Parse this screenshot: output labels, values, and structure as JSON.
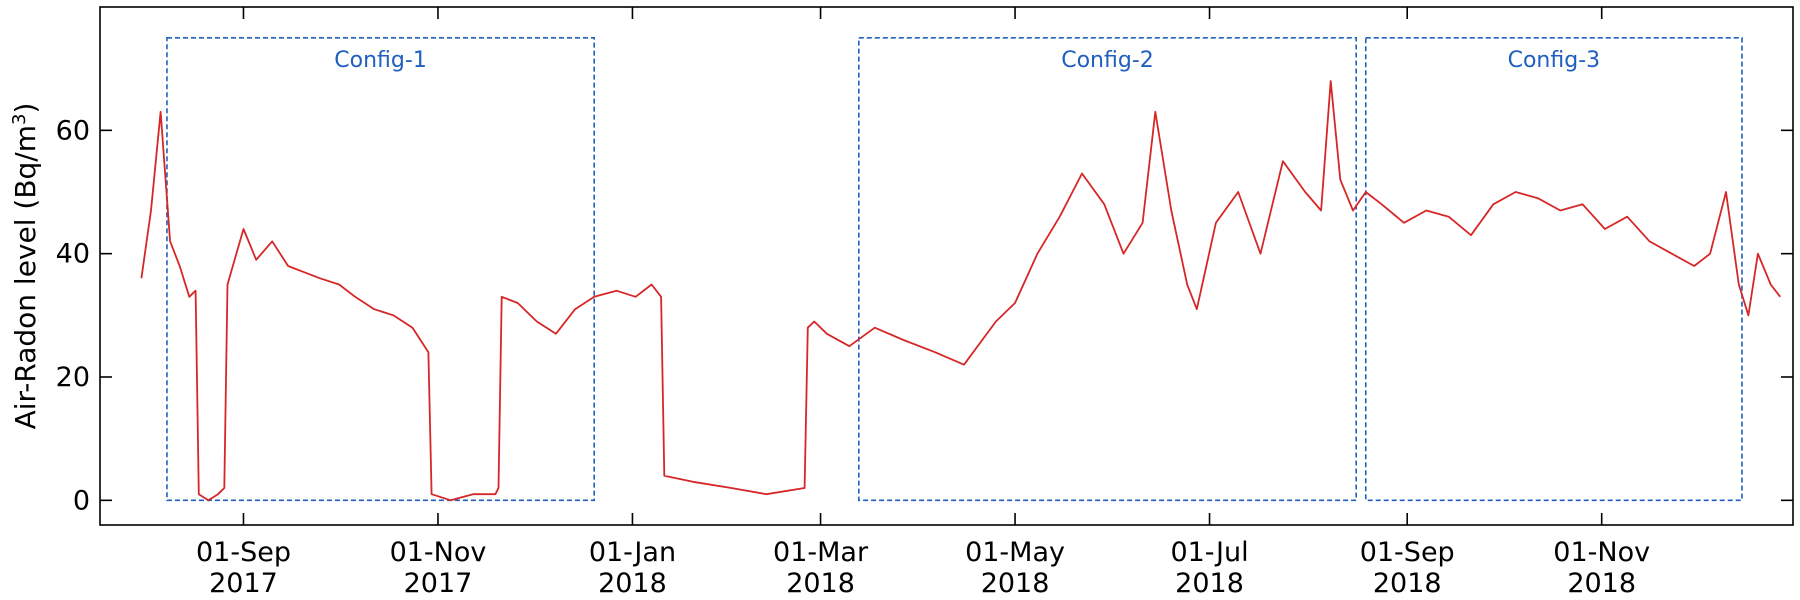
{
  "chart_data": {
    "type": "line",
    "ylabel_main": "Air-Radon level (Bq/m",
    "ylabel_sup": "3",
    "ylabel_tail": ")",
    "ylim": [
      -4,
      80
    ],
    "y_ticks": [
      0,
      20,
      40,
      60
    ],
    "x_range": [
      "2017-07-18",
      "2018-12-31"
    ],
    "x_ticks": [
      {
        "date": "2017-09-01",
        "line1": "01-Sep",
        "line2": "2017"
      },
      {
        "date": "2017-11-01",
        "line1": "01-Nov",
        "line2": "2017"
      },
      {
        "date": "2018-01-01",
        "line1": "01-Jan",
        "line2": "2018"
      },
      {
        "date": "2018-03-01",
        "line1": "01-Mar",
        "line2": "2018"
      },
      {
        "date": "2018-05-01",
        "line1": "01-May",
        "line2": "2018"
      },
      {
        "date": "2018-07-01",
        "line1": "01-Jul",
        "line2": "2018"
      },
      {
        "date": "2018-09-01",
        "line1": "01-Sep",
        "line2": "2018"
      },
      {
        "date": "2018-11-01",
        "line1": "01-Nov",
        "line2": "2018"
      }
    ],
    "grid": false,
    "line_color": "#d62728",
    "box_color": "#1f5fbf",
    "configs": [
      {
        "name": "Config-1",
        "start": "2017-08-08",
        "end": "2017-12-20",
        "ymin": 0,
        "ymax": 75
      },
      {
        "name": "Config-2",
        "start": "2018-03-13",
        "end": "2018-08-16",
        "ymin": 0,
        "ymax": 75
      },
      {
        "name": "Config-3",
        "start": "2018-08-19",
        "end": "2018-12-15",
        "ymin": 0,
        "ymax": 75
      }
    ],
    "series": [
      {
        "x": [
          "2017-07-31",
          "2017-08-03",
          "2017-08-06",
          "2017-08-09",
          "2017-08-12",
          "2017-08-15",
          "2017-08-17",
          "2017-08-18",
          "2017-08-21",
          "2017-08-24",
          "2017-08-26",
          "2017-08-27",
          "2017-09-01",
          "2017-09-05",
          "2017-09-10",
          "2017-09-15",
          "2017-09-20",
          "2017-09-25",
          "2017-10-01",
          "2017-10-06",
          "2017-10-12",
          "2017-10-18",
          "2017-10-24",
          "2017-10-29",
          "2017-10-30",
          "2017-11-05",
          "2017-11-12",
          "2017-11-19",
          "2017-11-20",
          "2017-11-21",
          "2017-11-26",
          "2017-12-02",
          "2017-12-08",
          "2017-12-14",
          "2017-12-20",
          "2017-12-27",
          "2018-01-02",
          "2018-01-07",
          "2018-01-10",
          "2018-01-11",
          "2018-01-20",
          "2018-02-01",
          "2018-02-12",
          "2018-02-24",
          "2018-02-25",
          "2018-02-27",
          "2018-03-03",
          "2018-03-10",
          "2018-03-18",
          "2018-03-27",
          "2018-04-06",
          "2018-04-15",
          "2018-04-25",
          "2018-05-01",
          "2018-05-08",
          "2018-05-15",
          "2018-05-22",
          "2018-05-29",
          "2018-06-04",
          "2018-06-10",
          "2018-06-14",
          "2018-06-19",
          "2018-06-24",
          "2018-06-27",
          "2018-07-03",
          "2018-07-10",
          "2018-07-17",
          "2018-07-24",
          "2018-07-31",
          "2018-08-05",
          "2018-08-08",
          "2018-08-11",
          "2018-08-15",
          "2018-08-19",
          "2018-08-24",
          "2018-08-31",
          "2018-09-07",
          "2018-09-14",
          "2018-09-21",
          "2018-09-28",
          "2018-10-05",
          "2018-10-12",
          "2018-10-19",
          "2018-10-26",
          "2018-11-02",
          "2018-11-09",
          "2018-11-16",
          "2018-11-23",
          "2018-11-30",
          "2018-12-05",
          "2018-12-10",
          "2018-12-14",
          "2018-12-17",
          "2018-12-20",
          "2018-12-24",
          "2018-12-27"
        ],
        "y": [
          36,
          47,
          63,
          42,
          38,
          33,
          34,
          1,
          0,
          1,
          2,
          35,
          44,
          39,
          42,
          38,
          37,
          36,
          35,
          33,
          31,
          30,
          28,
          24,
          1,
          0,
          1,
          1,
          2,
          33,
          32,
          29,
          27,
          31,
          33,
          34,
          33,
          35,
          33,
          4,
          3,
          2,
          1,
          2,
          28,
          29,
          27,
          25,
          28,
          26,
          24,
          22,
          29,
          32,
          40,
          46,
          53,
          48,
          40,
          45,
          63,
          47,
          35,
          31,
          45,
          50,
          40,
          55,
          50,
          47,
          68,
          52,
          47,
          50,
          48,
          45,
          47,
          46,
          43,
          48,
          50,
          49,
          47,
          48,
          44,
          46,
          42,
          40,
          38,
          40,
          50,
          35,
          30,
          40,
          35,
          33
        ]
      }
    ]
  }
}
